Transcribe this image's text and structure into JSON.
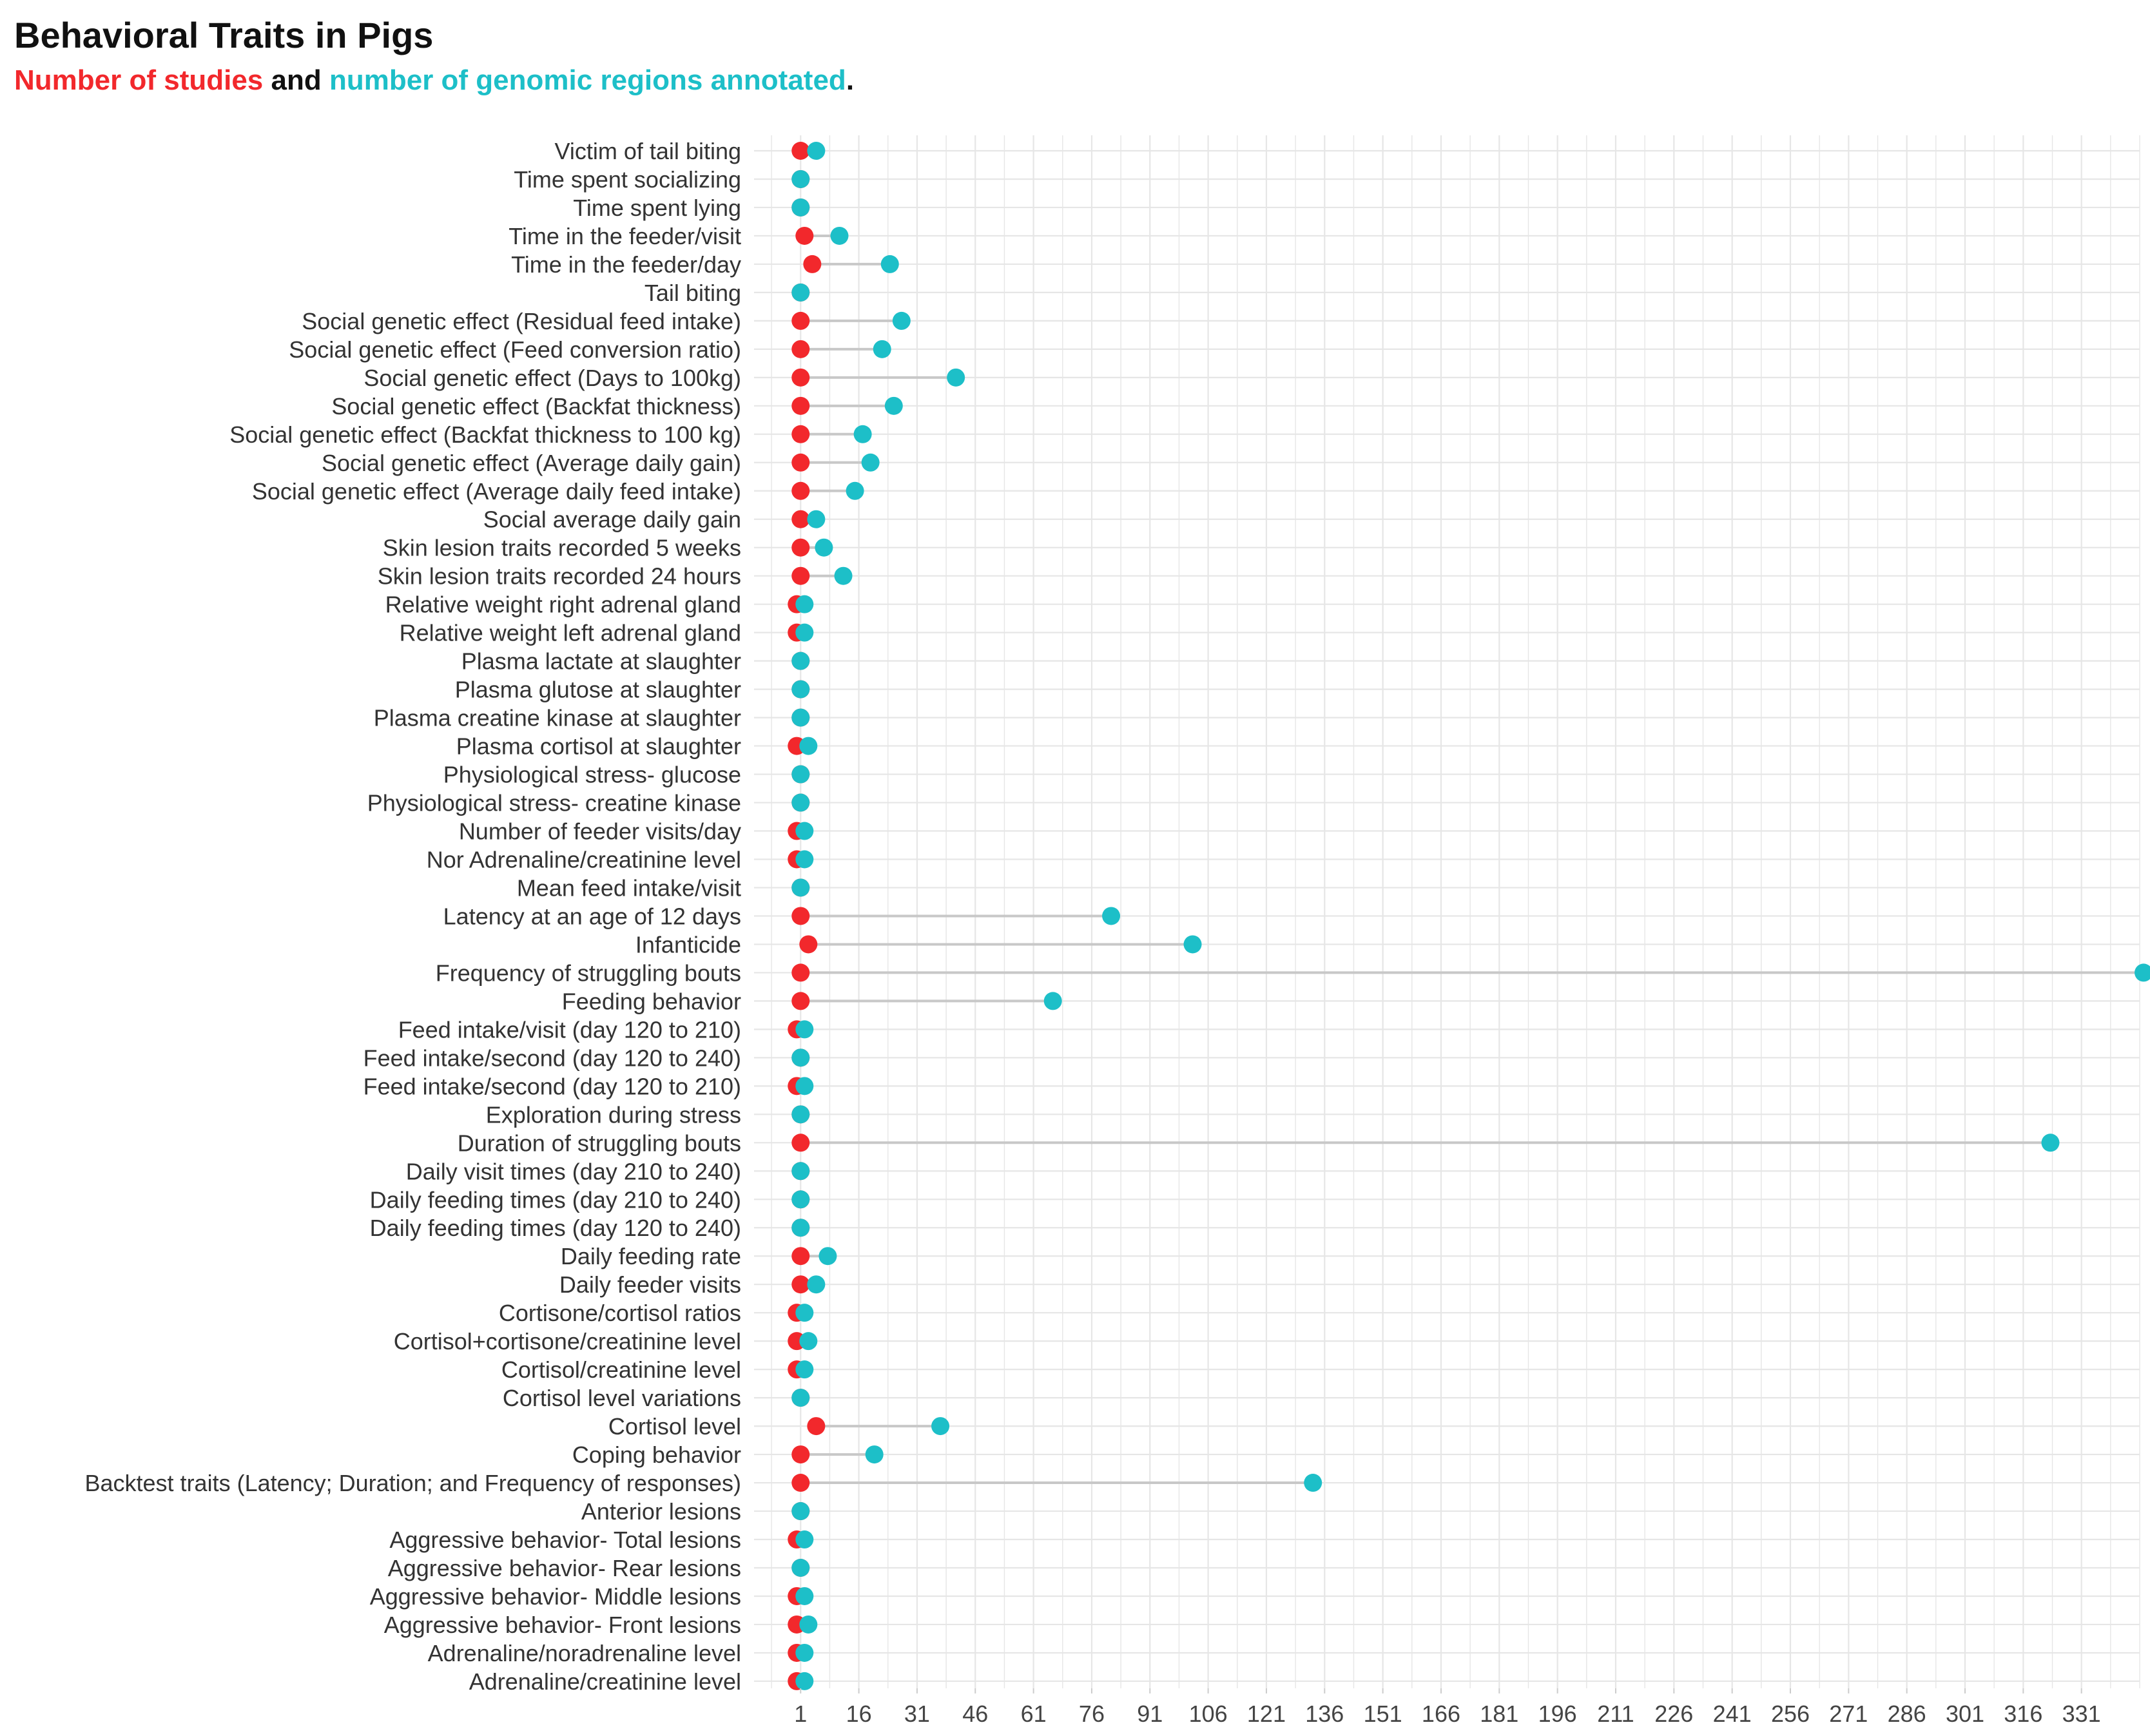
{
  "chart_data": {
    "type": "dot-plot",
    "title": "Behavioral Traits in Pigs",
    "subtitle": {
      "part1": "Number of studies",
      "part2": " and ",
      "part3": "number of genomic regions annotated",
      "part4": "."
    },
    "colors": {
      "studies": "#f2282c",
      "regions": "#1dbfc8",
      "connector": "#c8c8c8",
      "grid": "#e6e6e6",
      "text": "#333333"
    },
    "xlim": [
      -11,
      346
    ],
    "x_ticks": [
      1,
      16,
      31,
      46,
      61,
      76,
      91,
      106,
      121,
      136,
      151,
      166,
      181,
      196,
      211,
      226,
      241,
      256,
      271,
      286,
      301,
      316,
      331
    ],
    "series_names": [
      "Number of studies",
      "Number of genomic regions annotated"
    ],
    "categories": [
      "Victim of tail biting",
      "Time spent socializing",
      "Time spent lying",
      "Time in the feeder/visit",
      "Time in the feeder/day",
      "Tail biting",
      "Social genetic effect (Residual feed intake)",
      "Social genetic effect (Feed conversion ratio)",
      "Social genetic effect (Days to 100kg)",
      "Social genetic effect (Backfat thickness)",
      "Social genetic effect (Backfat thickness to 100 kg)",
      "Social genetic effect (Average daily gain)",
      "Social genetic effect (Average daily feed intake)",
      "Social average daily gain",
      "Skin lesion traits recorded 5 weeks",
      "Skin lesion traits recorded 24 hours",
      "Relative weight right adrenal gland",
      "Relative weight left adrenal gland",
      "Plasma lactate at slaughter",
      "Plasma glutose at slaughter",
      "Plasma creatine kinase at slaughter",
      "Plasma cortisol at slaughter",
      "Physiological stress- glucose",
      "Physiological stress- creatine kinase",
      "Number of feeder visits/day",
      "Nor Adrenaline/creatinine level",
      "Mean feed intake/visit",
      "Latency at an age of 12 days",
      "Infanticide",
      "Frequency of struggling bouts",
      "Feeding behavior",
      "Feed intake/visit (day 120 to 210)",
      "Feed intake/second (day 120 to 240)",
      "Feed intake/second (day 120 to 210)",
      "Exploration during stress",
      "Duration of struggling bouts",
      "Daily visit times (day 210 to 240)",
      "Daily feeding times (day 210 to 240)",
      "Daily feeding times (day 120 to 240)",
      "Daily feeding rate",
      "Daily feeder visits",
      "Cortisone/cortisol ratios",
      "Cortisol+cortisone/creatinine level",
      "Cortisol/creatinine level",
      "Cortisol level variations",
      "Cortisol level",
      "Coping behavior",
      "Backtest traits (Latency; Duration; and Frequency of responses)",
      "Anterior lesions",
      "Aggressive behavior- Total lesions",
      "Aggressive behavior- Rear lesions",
      "Aggressive behavior- Middle lesions",
      "Aggressive behavior- Front lesions",
      "Adrenaline/noradrenaline level",
      "Adrenaline/creatinine level"
    ],
    "studies": [
      1,
      1,
      1,
      2,
      4,
      1,
      1,
      1,
      1,
      1,
      1,
      1,
      1,
      1,
      1,
      1,
      0,
      0,
      1,
      1,
      1,
      0,
      1,
      1,
      0,
      0,
      1,
      1,
      3,
      1,
      1,
      0,
      1,
      0,
      1,
      1,
      1,
      1,
      1,
      1,
      1,
      0,
      0,
      0,
      1,
      5,
      1,
      1,
      1,
      0,
      1,
      0,
      0,
      0,
      0
    ],
    "regions": [
      5,
      1,
      1,
      11,
      24,
      1,
      27,
      22,
      41,
      25,
      17,
      19,
      15,
      5,
      7,
      12,
      2,
      2,
      1,
      1,
      1,
      3,
      1,
      1,
      2,
      2,
      1,
      81,
      102,
      347,
      66,
      2,
      1,
      2,
      1,
      323,
      1,
      1,
      1,
      8,
      5,
      2,
      3,
      2,
      1,
      37,
      20,
      133,
      1,
      2,
      1,
      2,
      3,
      2,
      2
    ]
  }
}
